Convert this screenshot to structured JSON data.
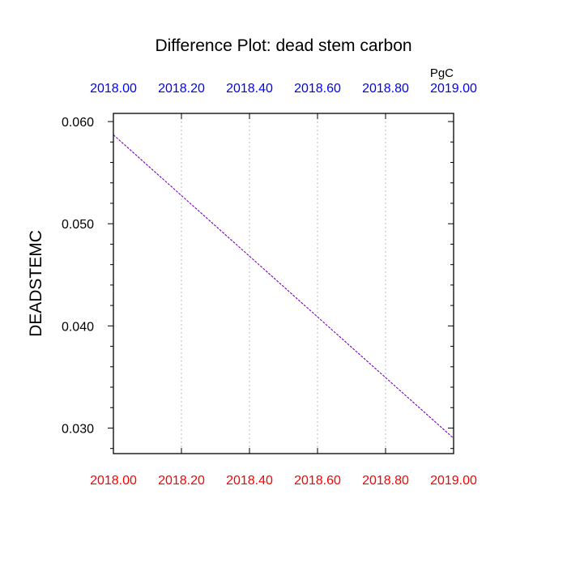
{
  "chart_data": {
    "type": "line",
    "title": "Difference Plot: dead stem carbon",
    "units": "PgC",
    "ylabel": "DEADSTEMC",
    "xlim": [
      2018.0,
      2019.0
    ],
    "ylim": [
      0.0275,
      0.0608
    ],
    "x_ticks": [
      2018.0,
      2018.2,
      2018.4,
      2018.6,
      2018.8,
      2019.0
    ],
    "x_tick_labels": [
      "2018.00",
      "2018.20",
      "2018.40",
      "2018.60",
      "2018.80",
      "2019.00"
    ],
    "y_ticks": [
      0.03,
      0.04,
      0.05,
      0.06
    ],
    "y_tick_labels": [
      "0.030",
      "0.040",
      "0.050",
      "0.060"
    ],
    "grid": "vertical-dotted",
    "bottom_axis_color": "#ff0000",
    "top_axis_color": "#0000ff",
    "series": [
      {
        "color": "#7f00bf",
        "x": [
          2018.0,
          2019.0
        ],
        "y": [
          0.0587,
          0.029
        ]
      }
    ]
  }
}
